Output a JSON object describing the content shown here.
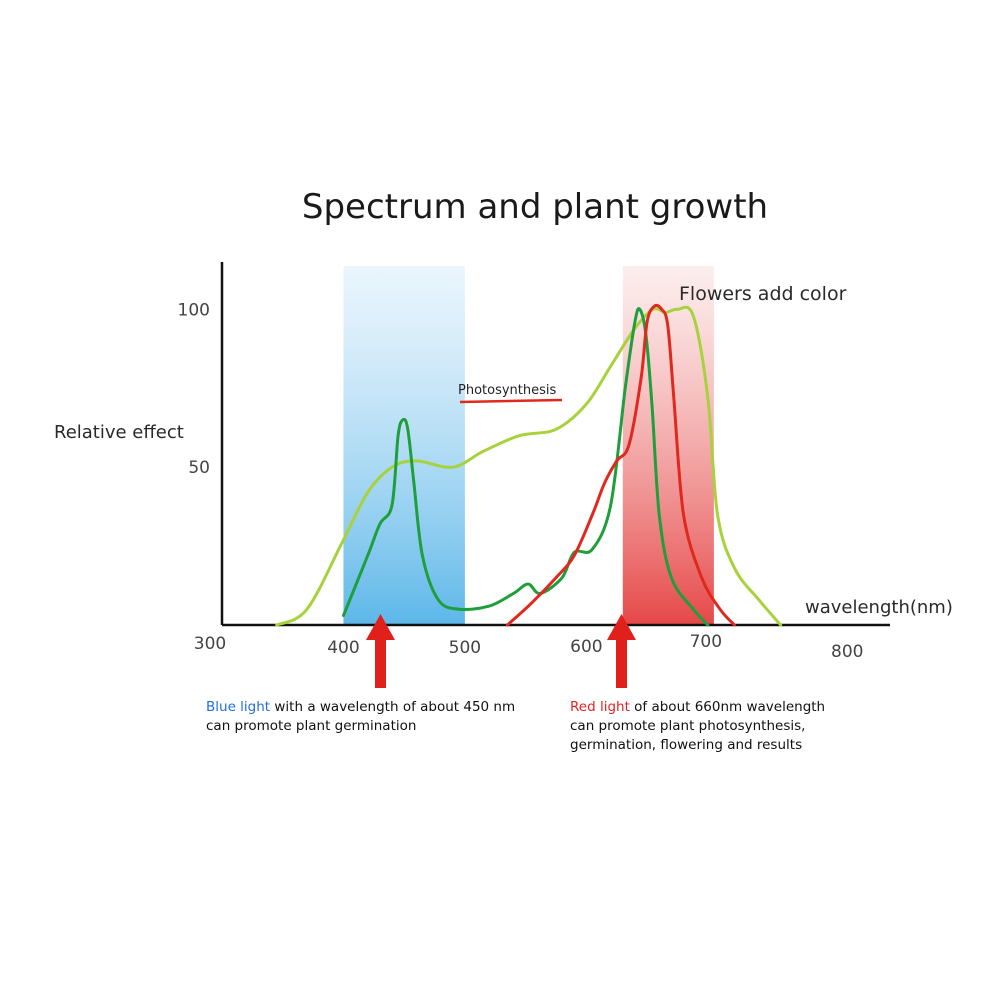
{
  "chart_data": {
    "type": "line",
    "title": "Spectrum and plant growth",
    "ylabel": "Relative effect",
    "xlabel": "wavelength(nm)",
    "xlim": [
      300,
      850
    ],
    "ylim": [
      0,
      115
    ],
    "x_ticks": [
      {
        "value": 300,
        "label": "300"
      },
      {
        "value": 400,
        "label": "400"
      },
      {
        "value": 500,
        "label": "500"
      },
      {
        "value": 600,
        "label": "600"
      },
      {
        "value": 700,
        "label": "700"
      },
      {
        "value": 800,
        "label": "800"
      }
    ],
    "y_ticks": [
      {
        "value": 50,
        "label": "50"
      },
      {
        "value": 100,
        "label": "100"
      }
    ],
    "bands": [
      {
        "name": "blue-band",
        "x0": 400,
        "x1": 500,
        "color": "#7cc3ec"
      },
      {
        "name": "red-band",
        "x0": 630,
        "x1": 705,
        "color": "#e84c4c"
      }
    ],
    "series": [
      {
        "key": "yellowgreen",
        "color": "#a8d23c",
        "points": [
          [
            345,
            0
          ],
          [
            370,
            5
          ],
          [
            400,
            27
          ],
          [
            420,
            42
          ],
          [
            440,
            50
          ],
          [
            460,
            52
          ],
          [
            490,
            50
          ],
          [
            515,
            55
          ],
          [
            545,
            60
          ],
          [
            575,
            62
          ],
          [
            600,
            70
          ],
          [
            620,
            82
          ],
          [
            640,
            94
          ],
          [
            655,
            100
          ],
          [
            665,
            99
          ],
          [
            675,
            100
          ],
          [
            688,
            98
          ],
          [
            700,
            72
          ],
          [
            708,
            35
          ],
          [
            722,
            18
          ],
          [
            742,
            8
          ],
          [
            760,
            0
          ]
        ]
      },
      {
        "key": "green",
        "color": "#1f9e3c",
        "points": [
          [
            400,
            3
          ],
          [
            420,
            22
          ],
          [
            430,
            32
          ],
          [
            440,
            38
          ],
          [
            445,
            60
          ],
          [
            449,
            65
          ],
          [
            453,
            62
          ],
          [
            458,
            45
          ],
          [
            465,
            22
          ],
          [
            478,
            8
          ],
          [
            495,
            5
          ],
          [
            520,
            6
          ],
          [
            540,
            10
          ],
          [
            552,
            13
          ],
          [
            562,
            10
          ],
          [
            580,
            15
          ],
          [
            590,
            23
          ],
          [
            605,
            24
          ],
          [
            620,
            38
          ],
          [
            632,
            75
          ],
          [
            640,
            96
          ],
          [
            644,
            100
          ],
          [
            649,
            92
          ],
          [
            654,
            70
          ],
          [
            660,
            35
          ],
          [
            670,
            15
          ],
          [
            688,
            5
          ],
          [
            700,
            0
          ]
        ]
      },
      {
        "key": "red",
        "color": "#e0281e",
        "points": [
          [
            535,
            0
          ],
          [
            555,
            7
          ],
          [
            575,
            15
          ],
          [
            590,
            22
          ],
          [
            605,
            35
          ],
          [
            615,
            45
          ],
          [
            625,
            52
          ],
          [
            635,
            57
          ],
          [
            645,
            78
          ],
          [
            650,
            96
          ],
          [
            656,
            101
          ],
          [
            662,
            100
          ],
          [
            667,
            95
          ],
          [
            672,
            72
          ],
          [
            680,
            35
          ],
          [
            695,
            15
          ],
          [
            710,
            5
          ],
          [
            722,
            0
          ]
        ]
      }
    ],
    "annotations": [
      {
        "text": "Flowers add color",
        "x": 680,
        "y": 105
      },
      {
        "text": "Photosynthesis",
        "x": 505,
        "y": 74
      }
    ]
  },
  "captions": {
    "blue": {
      "highlight": "Blue light",
      "rest": " with a wavelength of about 450 nm",
      "line2": "can promote plant germination"
    },
    "red": {
      "highlight": "Red light",
      "rest": " of about 660nm wavelength",
      "line2": "can promote plant photosynthesis,",
      "line3": "germination, flowering and results"
    }
  }
}
